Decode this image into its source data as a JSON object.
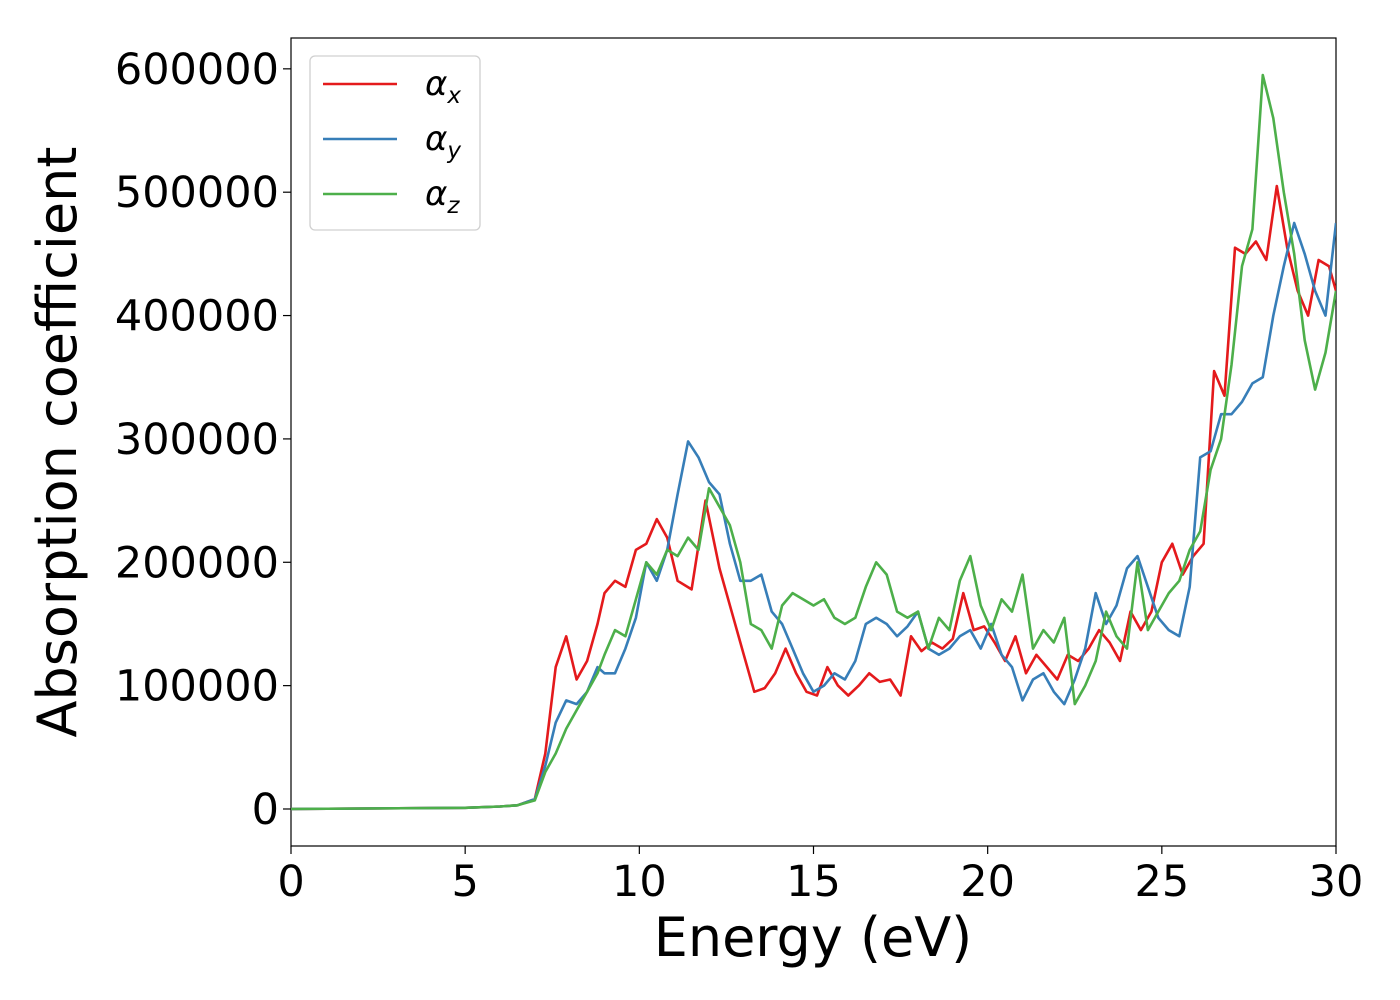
{
  "chart_data": {
    "type": "line",
    "xlabel": "Energy (eV)",
    "ylabel": "Absorption coefficient",
    "xlim": [
      0,
      30
    ],
    "ylim": [
      -30000,
      625000
    ],
    "xticks": [
      0,
      5,
      10,
      15,
      20,
      25,
      30
    ],
    "yticks": [
      0,
      100000,
      200000,
      300000,
      400000,
      500000,
      600000
    ],
    "grid": false,
    "legend_position": "top-left",
    "series": [
      {
        "name": "α_x",
        "legend_main": "α",
        "legend_sub": "x",
        "color": "#e41a1c",
        "x": [
          0,
          5,
          6,
          6.5,
          7,
          7.3,
          7.6,
          7.9,
          8.2,
          8.5,
          8.8,
          9.0,
          9.3,
          9.6,
          9.9,
          10.2,
          10.5,
          10.8,
          11.1,
          11.5,
          11.9,
          12.3,
          12.7,
          13.0,
          13.3,
          13.6,
          13.9,
          14.2,
          14.5,
          14.8,
          15.1,
          15.4,
          15.7,
          16.0,
          16.3,
          16.6,
          16.9,
          17.2,
          17.5,
          17.8,
          18.1,
          18.4,
          18.7,
          19.0,
          19.3,
          19.6,
          19.9,
          20.2,
          20.5,
          20.8,
          21.1,
          21.4,
          21.7,
          22.0,
          22.3,
          22.6,
          22.9,
          23.2,
          23.5,
          23.8,
          24.1,
          24.4,
          24.7,
          25.0,
          25.3,
          25.6,
          25.9,
          26.2,
          26.5,
          26.8,
          27.1,
          27.4,
          27.7,
          28.0,
          28.3,
          28.6,
          28.9,
          29.2,
          29.5,
          29.8,
          30.0
        ],
        "y": [
          0,
          1000,
          2000,
          3000,
          8000,
          45000,
          115000,
          140000,
          105000,
          120000,
          150000,
          175000,
          185000,
          180000,
          210000,
          215000,
          235000,
          220000,
          185000,
          178000,
          250000,
          195000,
          155000,
          125000,
          95000,
          98000,
          110000,
          130000,
          110000,
          95000,
          92000,
          115000,
          100000,
          92000,
          100000,
          110000,
          103000,
          105000,
          92000,
          140000,
          128000,
          135000,
          130000,
          138000,
          175000,
          145000,
          148000,
          135000,
          120000,
          140000,
          110000,
          125000,
          115000,
          105000,
          125000,
          120000,
          130000,
          145000,
          135000,
          120000,
          160000,
          145000,
          160000,
          200000,
          215000,
          190000,
          205000,
          215000,
          355000,
          335000,
          455000,
          450000,
          460000,
          445000,
          505000,
          455000,
          420000,
          400000,
          445000,
          440000,
          420000
        ]
      },
      {
        "name": "α_y",
        "legend_main": "α",
        "legend_sub": "y",
        "color": "#377eb8",
        "x": [
          0,
          5,
          6,
          6.5,
          7,
          7.3,
          7.6,
          7.9,
          8.2,
          8.5,
          8.8,
          9.0,
          9.3,
          9.6,
          9.9,
          10.2,
          10.5,
          10.8,
          11.1,
          11.4,
          11.7,
          12.0,
          12.3,
          12.6,
          12.9,
          13.2,
          13.5,
          13.8,
          14.1,
          14.4,
          14.7,
          15.0,
          15.3,
          15.6,
          15.9,
          16.2,
          16.5,
          16.8,
          17.1,
          17.4,
          17.7,
          18.0,
          18.3,
          18.6,
          18.9,
          19.2,
          19.5,
          19.8,
          20.1,
          20.4,
          20.7,
          21.0,
          21.3,
          21.6,
          21.9,
          22.2,
          22.5,
          22.8,
          23.1,
          23.4,
          23.7,
          24.0,
          24.3,
          24.6,
          24.9,
          25.2,
          25.5,
          25.8,
          26.1,
          26.4,
          26.7,
          27.0,
          27.3,
          27.6,
          27.9,
          28.2,
          28.5,
          28.8,
          29.1,
          29.4,
          29.7,
          30.0
        ],
        "y": [
          0,
          1000,
          2000,
          3000,
          8000,
          35000,
          70000,
          88000,
          85000,
          95000,
          115000,
          110000,
          110000,
          130000,
          155000,
          200000,
          185000,
          210000,
          255000,
          298000,
          285000,
          265000,
          255000,
          215000,
          185000,
          185000,
          190000,
          160000,
          150000,
          130000,
          110000,
          95000,
          100000,
          110000,
          105000,
          120000,
          150000,
          155000,
          150000,
          140000,
          148000,
          160000,
          130000,
          125000,
          130000,
          140000,
          145000,
          130000,
          150000,
          125000,
          115000,
          88000,
          105000,
          110000,
          95000,
          85000,
          105000,
          130000,
          175000,
          150000,
          165000,
          195000,
          205000,
          180000,
          155000,
          145000,
          140000,
          180000,
          285000,
          290000,
          320000,
          320000,
          330000,
          345000,
          350000,
          400000,
          440000,
          475000,
          450000,
          420000,
          400000,
          475000
        ]
      },
      {
        "name": "α_z",
        "legend_main": "α",
        "legend_sub": "z",
        "color": "#4daf4a",
        "x": [
          0,
          5,
          6,
          6.5,
          7,
          7.3,
          7.6,
          7.9,
          8.2,
          8.5,
          8.8,
          9.0,
          9.3,
          9.6,
          9.9,
          10.2,
          10.5,
          10.8,
          11.1,
          11.4,
          11.7,
          12.0,
          12.3,
          12.6,
          12.9,
          13.2,
          13.5,
          13.8,
          14.1,
          14.4,
          14.7,
          15.0,
          15.3,
          15.6,
          15.9,
          16.2,
          16.5,
          16.8,
          17.1,
          17.4,
          17.7,
          18.0,
          18.3,
          18.6,
          18.9,
          19.2,
          19.5,
          19.8,
          20.1,
          20.4,
          20.7,
          21.0,
          21.3,
          21.6,
          21.9,
          22.2,
          22.5,
          22.8,
          23.1,
          23.4,
          23.7,
          24.0,
          24.3,
          24.6,
          24.9,
          25.2,
          25.5,
          25.8,
          26.1,
          26.4,
          26.7,
          27.0,
          27.3,
          27.6,
          27.9,
          28.2,
          28.5,
          28.8,
          29.1,
          29.4,
          29.7,
          30.0
        ],
        "y": [
          0,
          1000,
          2000,
          3000,
          7000,
          30000,
          45000,
          65000,
          80000,
          95000,
          110000,
          125000,
          145000,
          140000,
          170000,
          200000,
          190000,
          210000,
          205000,
          220000,
          210000,
          260000,
          245000,
          230000,
          200000,
          150000,
          145000,
          130000,
          165000,
          175000,
          170000,
          165000,
          170000,
          155000,
          150000,
          155000,
          180000,
          200000,
          190000,
          160000,
          155000,
          160000,
          130000,
          155000,
          145000,
          185000,
          205000,
          165000,
          145000,
          170000,
          160000,
          190000,
          130000,
          145000,
          135000,
          155000,
          85000,
          100000,
          120000,
          160000,
          140000,
          130000,
          200000,
          145000,
          160000,
          175000,
          185000,
          210000,
          225000,
          275000,
          300000,
          360000,
          440000,
          470000,
          595000,
          560000,
          500000,
          450000,
          380000,
          340000,
          370000,
          420000
        ]
      }
    ]
  }
}
